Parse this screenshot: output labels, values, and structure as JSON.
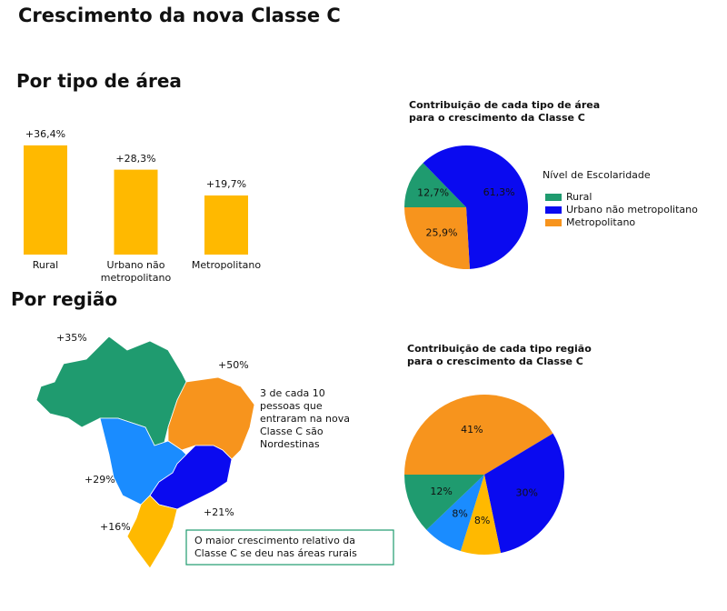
{
  "title": "Crescimento da nova Classe C",
  "chart_data": [
    {
      "type": "bar",
      "title": "Por tipo de área",
      "categories": [
        "Rural",
        "Urbano não metropolitano",
        "Metropolitano"
      ],
      "values": [
        36.4,
        28.3,
        19.7
      ],
      "value_labels": [
        "+36,4%",
        "+28,3%",
        "+19,7%"
      ],
      "color": "#ffb900"
    },
    {
      "type": "pie",
      "title": "Contribuição de cada tipo de área para o crescimento da Classe C",
      "legend_title": "Nível de Escolaridade",
      "categories": [
        "Rural",
        "Urbano não metropolitano",
        "Metropolitano"
      ],
      "values": [
        12.7,
        61.3,
        25.9
      ],
      "value_labels": [
        "12,7%",
        "61,3%",
        "25,9%"
      ],
      "colors": [
        "#1f9b6f",
        "#0a0af0",
        "#f7941d"
      ]
    },
    {
      "type": "pie",
      "title": "Contribuição de cada tipo região para o crescimento da Classe C",
      "values": [
        41,
        30,
        8,
        8,
        12
      ],
      "value_labels": [
        "41%",
        "30%",
        "8%",
        "8%",
        "12%"
      ],
      "colors": [
        "#f7941d",
        "#0a0af0",
        "#ffb900",
        "#1a8cff",
        "#1f9b6f"
      ]
    },
    {
      "type": "map",
      "title": "Por região",
      "values": [
        35,
        50,
        29,
        21,
        16
      ],
      "value_labels": [
        "+35%",
        "+50%",
        "+29%",
        "+21%",
        "+16%"
      ],
      "colors": [
        "#1f9b6f",
        "#f7941d",
        "#1a8cff",
        "#0a0af0",
        "#ffb900"
      ],
      "annotation": "3 de cada 10 pessoas que entraram na nova Classe C são Nordestinas",
      "note": "O maior crescimento relativo da Classe C se deu nas áreas rurais"
    }
  ]
}
